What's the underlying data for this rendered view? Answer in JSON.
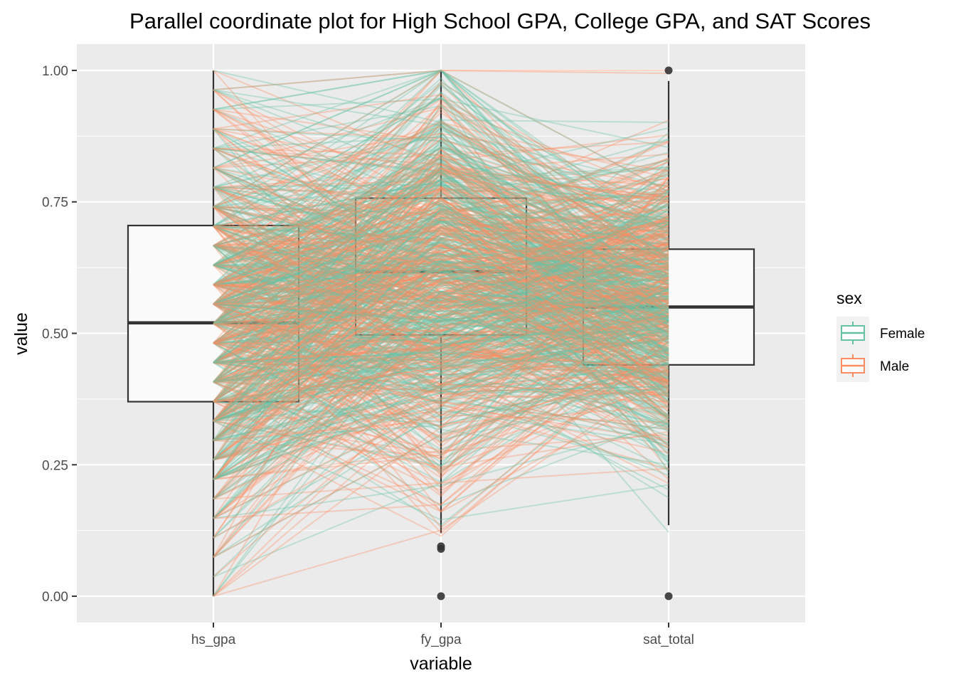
{
  "chart_data": {
    "type": "parallel-coordinates",
    "title": "Parallel coordinate plot for High School GPA, College GPA, and SAT Scores",
    "xlabel": "variable",
    "ylabel": "value",
    "ylim": [
      -0.05,
      1.05
    ],
    "y_ticks": [
      "0.00",
      "0.25",
      "0.50",
      "0.75",
      "1.00"
    ],
    "y_tick_values": [
      0,
      0.25,
      0.5,
      0.75,
      1.0
    ],
    "categories": [
      "hs_gpa",
      "fy_gpa",
      "sat_total"
    ],
    "grid": true,
    "legend": {
      "title": "sex",
      "position": "right",
      "entries": [
        "Female",
        "Male"
      ]
    },
    "colors": {
      "Female": "#66C2A5",
      "Male": "#FC8D62",
      "panel": "#EBEBEB",
      "grid": "#FFFFFF",
      "box": "#333333",
      "box_fill": "#FAFAFA"
    },
    "boxplots": [
      {
        "variable": "hs_gpa",
        "whisker_low": 0.0,
        "q1": 0.37,
        "median": 0.52,
        "q3": 0.705,
        "whisker_high": 1.0,
        "outliers": []
      },
      {
        "variable": "fy_gpa",
        "whisker_low": 0.12,
        "q1": 0.497,
        "median": 0.617,
        "q3": 0.757,
        "whisker_high": 1.0,
        "outliers": [
          0.0,
          0.09,
          0.095
        ]
      },
      {
        "variable": "sat_total",
        "whisker_low": 0.135,
        "q1": 0.44,
        "median": 0.55,
        "q3": 0.66,
        "whisker_high": 0.98,
        "outliers": [
          0.0,
          1.0
        ]
      }
    ],
    "series": [
      {
        "name": "Female",
        "n_lines": 460,
        "means": [
          0.52,
          0.62,
          0.55
        ],
        "sds": [
          0.2,
          0.19,
          0.15
        ]
      },
      {
        "name": "Male",
        "n_lines": 460,
        "means": [
          0.52,
          0.6,
          0.57
        ],
        "sds": [
          0.2,
          0.19,
          0.15
        ]
      }
    ]
  }
}
